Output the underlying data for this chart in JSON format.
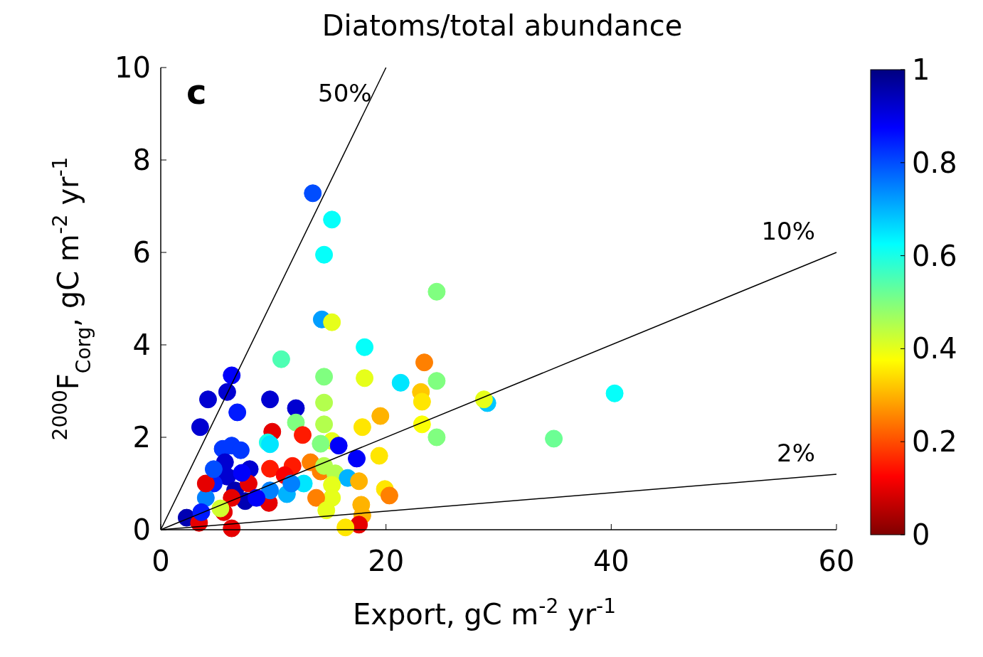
{
  "chart_data": {
    "type": "scatter",
    "title": "Diatoms/total abundance",
    "xlabel": "Export, gC m$^{-2}$ yr$^{-1}$",
    "ylabel": "$^{2000}$F$_{Corg}$, gC m$^{-2}$ yr$^{-1}$",
    "clabel": null,
    "xlim": [
      0,
      60
    ],
    "ylim": [
      0,
      10
    ],
    "xticks": [
      0,
      20,
      40,
      60
    ],
    "yticks": [
      0,
      2,
      4,
      6,
      8,
      10
    ],
    "clim": [
      0,
      1
    ],
    "cticks": [
      0,
      0.2,
      0.4,
      0.6,
      0.8,
      1
    ],
    "grid": false,
    "annotations": [
      "c"
    ],
    "series": [
      {
        "marker": "circle",
        "colors": [
          "#004dff",
          "#05fffa",
          "#05fffa",
          "#80ff80",
          "#009eff",
          "#e6ff1a",
          "#05fffa",
          "#4dffb3",
          "#ff8000",
          "#0000fa",
          "#80ff80",
          "#e6ff1a",
          "#00e6ff",
          "#80ff80",
          "#0000d1",
          "#0000d1",
          "#0000d1",
          "#0000d1",
          "#001aff",
          "#b3ff4d",
          "#ffc700",
          "#ffe600",
          "#00c7ff",
          "#e6ff1a",
          "#05fffa",
          "#ffb300",
          "#0000d1",
          "#b3ff4d",
          "#faff05",
          "#ffe600",
          "#80ff80",
          "#6cff94",
          "#e60000",
          "#80ff80",
          "#ff1a00",
          "#1affe6",
          "#00e6ff",
          "#e6ff1a",
          "#0000fa",
          "#80ff80",
          "#0038ff",
          "#0038ff",
          "#0038ff",
          "#0000fa",
          "#ffe600",
          "#ff1a00",
          "#ff1a00",
          "#ff8000",
          "#ff8000",
          "#b3ff4d",
          "#b3ff4d",
          "#00b3ff",
          "#ffb300",
          "#e6ff1a",
          "#ffe600",
          "#ff8000",
          "#e6ff1a",
          "#ff8000",
          "#e6ff1a",
          "#ffb300",
          "#ffb300",
          "#e60000",
          "#ffe600",
          "#00e6ff",
          "#00b3ff",
          "#e60000",
          "#0080ff",
          "#0000d1",
          "#0000d1",
          "#001aff",
          "#0000b3",
          "#0080ff",
          "#0000b3",
          "#0000d1",
          "#e60000",
          "#0000b3",
          "#e60000",
          "#e60000",
          "#e60000",
          "#e60000",
          "#e60000",
          "#0000fa",
          "#004dff",
          "#0000fa",
          "#d1ff2e",
          "#001aff",
          "#fa0000",
          "#0080ff"
        ],
        "x": [
          13.5,
          15.2,
          14.5,
          24.5,
          14.3,
          15.2,
          18.1,
          10.7,
          23.4,
          6.3,
          14.5,
          18.1,
          21.3,
          24.5,
          4.2,
          5.9,
          9.7,
          12.0,
          6.8,
          14.5,
          23.1,
          23.2,
          29.0,
          28.7,
          40.3,
          19.5,
          3.5,
          14.5,
          23.2,
          17.9,
          24.5,
          34.9,
          9.9,
          12.0,
          12.6,
          9.5,
          9.7,
          15.2,
          15.8,
          14.2,
          5.5,
          6.3,
          7.1,
          17.4,
          19.4,
          11.7,
          9.7,
          13.3,
          14.2,
          15.5,
          14.5,
          16.6,
          17.6,
          15.2,
          19.9,
          20.3,
          15.2,
          13.8,
          14.7,
          17.8,
          17.9,
          17.6,
          16.4,
          12.7,
          11.2,
          9.6,
          9.7,
          7.9,
          5.9,
          4.7,
          6.6,
          4.0,
          7.5,
          5.7,
          4.0,
          2.3,
          3.4,
          6.3,
          5.6,
          6.3,
          7.8,
          8.5,
          4.7,
          7.2,
          5.3,
          3.6,
          11.0,
          11.6
        ],
        "values": [
          7.28,
          6.71,
          5.95,
          5.15,
          4.55,
          4.49,
          3.95,
          3.69,
          3.62,
          3.34,
          3.31,
          3.28,
          3.18,
          3.22,
          2.82,
          2.98,
          2.82,
          2.63,
          2.54,
          2.75,
          2.98,
          2.77,
          2.74,
          2.82,
          2.95,
          2.46,
          2.22,
          2.28,
          2.28,
          2.22,
          2.0,
          1.97,
          2.12,
          2.32,
          2.05,
          1.89,
          1.85,
          1.92,
          1.82,
          1.86,
          1.75,
          1.82,
          1.72,
          1.54,
          1.6,
          1.38,
          1.32,
          1.46,
          1.26,
          1.22,
          1.38,
          1.12,
          1.05,
          0.97,
          0.88,
          0.74,
          0.69,
          0.69,
          0.42,
          0.54,
          0.31,
          0.11,
          0.05,
          1.0,
          0.77,
          0.58,
          0.85,
          1.31,
          1.15,
          1.0,
          0.85,
          0.69,
          0.62,
          1.46,
          1.0,
          0.26,
          0.15,
          0.03,
          0.38,
          0.69,
          1.0,
          0.69,
          1.31,
          1.23,
          0.46,
          0.38,
          1.18,
          1.0
        ],
        "cvalues": [
          0.8,
          0.62,
          0.62,
          0.5,
          0.72,
          0.4,
          0.62,
          0.55,
          0.25,
          0.88,
          0.5,
          0.4,
          0.65,
          0.5,
          0.92,
          0.92,
          0.92,
          0.92,
          0.85,
          0.45,
          0.32,
          0.35,
          0.68,
          0.4,
          0.62,
          0.3,
          0.92,
          0.45,
          0.38,
          0.35,
          0.5,
          0.52,
          0.1,
          0.5,
          0.15,
          0.6,
          0.65,
          0.4,
          0.88,
          0.5,
          0.82,
          0.82,
          0.82,
          0.88,
          0.35,
          0.15,
          0.15,
          0.25,
          0.25,
          0.45,
          0.45,
          0.7,
          0.3,
          0.4,
          0.35,
          0.25,
          0.4,
          0.25,
          0.4,
          0.3,
          0.3,
          0.1,
          0.35,
          0.65,
          0.7,
          0.1,
          0.75,
          0.92,
          0.92,
          0.85,
          0.95,
          0.75,
          0.95,
          0.92,
          0.1,
          0.95,
          0.1,
          0.1,
          0.1,
          0.1,
          0.1,
          0.88,
          0.8,
          0.88,
          0.42,
          0.85,
          0.12,
          0.75
        ]
      },
      {
        "type": "line",
        "marker": "none",
        "name": "50%",
        "color": "#000000",
        "x": [
          0,
          20
        ],
        "values": [
          0,
          10
        ]
      },
      {
        "type": "line",
        "marker": "none",
        "name": "10%",
        "color": "#000000",
        "x": [
          0,
          60
        ],
        "values": [
          0,
          6
        ]
      },
      {
        "type": "line",
        "marker": "none",
        "name": "2%",
        "color": "#000000",
        "x": [
          0,
          60
        ],
        "values": [
          0,
          1.2
        ]
      }
    ]
  }
}
